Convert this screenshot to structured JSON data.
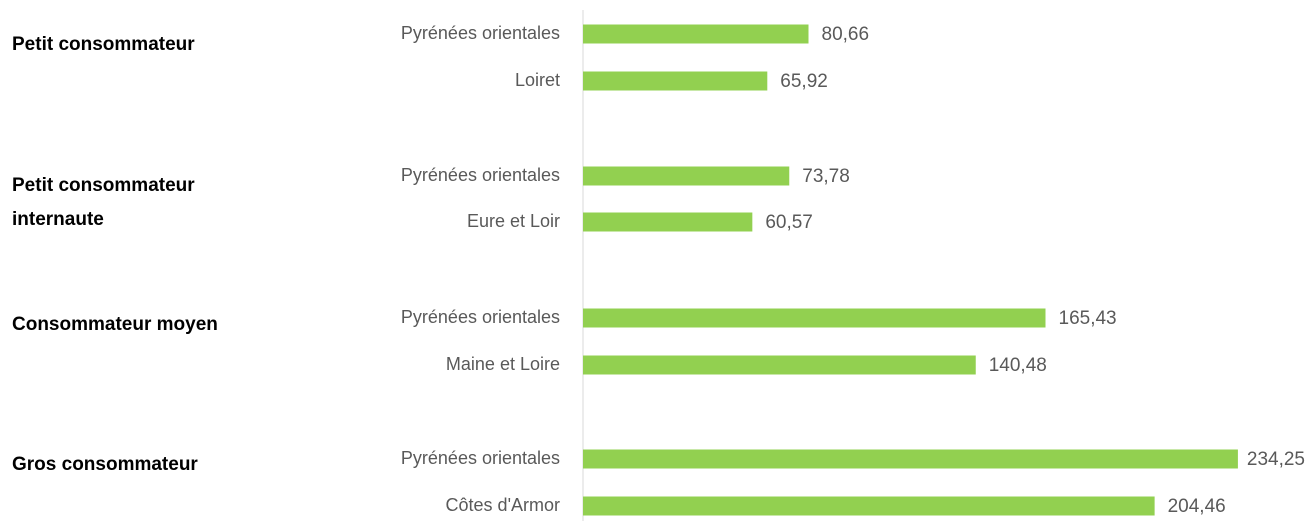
{
  "chart_data": {
    "type": "bar",
    "orientation": "horizontal",
    "color": "#92d050",
    "xlim": [
      0,
      235
    ],
    "groups": [
      {
        "name": "Petit consommateur",
        "categories": [
          "Pyrénées orientales",
          "Loiret"
        ],
        "values": [
          80.66,
          65.92
        ],
        "value_labels": [
          "80,66",
          "65,92"
        ]
      },
      {
        "name": "Petit consommateur internaute",
        "categories": [
          "Pyrénées orientales",
          "Eure et Loir"
        ],
        "values": [
          73.78,
          60.57
        ],
        "value_labels": [
          "73,78",
          "60,57"
        ]
      },
      {
        "name": "Consommateur moyen",
        "categories": [
          "Pyrénées orientales",
          "Maine et Loire"
        ],
        "values": [
          165.43,
          140.48
        ],
        "value_labels": [
          "165,43",
          "140,48"
        ]
      },
      {
        "name": "Gros consommateur",
        "categories": [
          "Pyrénées orientales",
          "Côtes d'Armor"
        ],
        "values": [
          234.25,
          204.46
        ],
        "value_labels": [
          "234,25",
          "204,46"
        ]
      }
    ]
  }
}
